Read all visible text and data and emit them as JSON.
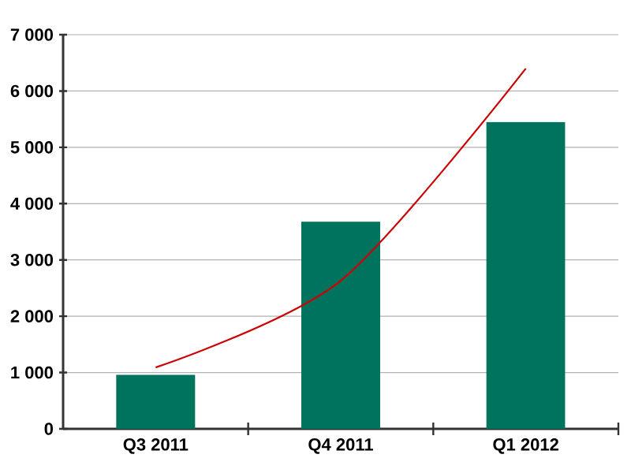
{
  "chart_data": {
    "type": "bar",
    "categories": [
      "Q3 2011",
      "Q4 2011",
      "Q1 2012"
    ],
    "series": [
      {
        "color": "#00735f",
        "values": [
          960,
          3680,
          5450
        ]
      },
      {
        "type": "line",
        "color": "#cc0000",
        "values": [
          1090,
          2630,
          6400
        ]
      }
    ],
    "ylim": [
      0,
      7000
    ],
    "yticks": [
      0,
      {
        "value": 1000,
        "label": "1 000"
      },
      {
        "value": 2000,
        "label": "2 000"
      },
      {
        "value": 3000,
        "label": "3 000"
      },
      {
        "value": 4000,
        "label": "4 000"
      },
      {
        "value": 5000,
        "label": "5 000"
      },
      {
        "value": 6000,
        "label": "6 000"
      },
      {
        "value": 7000,
        "label": "7 000"
      }
    ],
    "grid": "y"
  }
}
